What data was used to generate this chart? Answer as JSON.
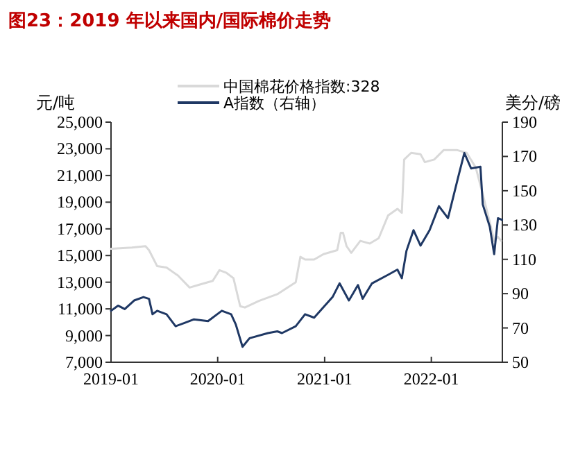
{
  "chart_data": {
    "type": "line",
    "title": "图23：2019 年以来国内/国际棉价走势",
    "ylabel": "元/吨",
    "y2label": "美分/磅",
    "legend": "top",
    "xlim": [
      "2019-01-01",
      "2022-09-01"
    ],
    "xticks": [
      {
        "value": "2019-01-01",
        "label": "2019-01"
      },
      {
        "value": "2020-01-01",
        "label": "2020-01"
      },
      {
        "value": "2021-01-01",
        "label": "2021-01"
      },
      {
        "value": "2022-01-01",
        "label": "2022-01"
      }
    ],
    "ylim": [
      7000,
      25000
    ],
    "yticks": [
      {
        "value": 7000,
        "label": "7,000"
      },
      {
        "value": 9000,
        "label": "9,000"
      },
      {
        "value": 11000,
        "label": "11,000"
      },
      {
        "value": 13000,
        "label": "13,000"
      },
      {
        "value": 15000,
        "label": "15,000"
      },
      {
        "value": 17000,
        "label": "17,000"
      },
      {
        "value": 19000,
        "label": "19,000"
      },
      {
        "value": 21000,
        "label": "21,000"
      },
      {
        "value": 23000,
        "label": "23,000"
      },
      {
        "value": 25000,
        "label": "25,000"
      }
    ],
    "y2lim": [
      50,
      190
    ],
    "y2ticks": [
      50,
      70,
      90,
      110,
      130,
      150,
      170,
      190
    ],
    "series": [
      {
        "name": "中国棉花价格指数:328",
        "color": "#d9d9d9",
        "x": [
          "2019-01-01",
          "2019-03-13",
          "2019-04-29",
          "2019-05-11",
          "2019-06-08",
          "2019-07-10",
          "2019-08-18",
          "2019-09-27",
          "2019-10-28",
          "2019-12-15",
          "2020-01-07",
          "2020-01-31",
          "2020-02-24",
          "2020-03-18",
          "2020-04-03",
          "2020-05-21",
          "2020-07-23",
          "2020-09-24",
          "2020-10-10",
          "2020-10-26",
          "2020-11-26",
          "2020-12-28",
          "2021-02-13",
          "2021-02-25",
          "2021-03-05",
          "2021-03-17",
          "2021-04-02",
          "2021-05-03",
          "2021-06-04",
          "2021-07-05",
          "2021-08-06",
          "2021-09-07",
          "2021-09-22",
          "2021-09-30",
          "2021-10-24",
          "2021-11-25",
          "2021-12-10",
          "2022-01-11",
          "2022-02-12",
          "2022-03-31",
          "2022-05-02",
          "2022-06-02",
          "2022-06-26",
          "2022-07-20",
          "2022-08-04",
          "2022-08-17",
          "2022-08-28"
        ],
        "values": [
          15500,
          15600,
          15700,
          15400,
          14200,
          14100,
          13500,
          12600,
          12800,
          13100,
          13900,
          13700,
          13300,
          11200,
          11100,
          11600,
          12100,
          13000,
          14900,
          14700,
          14700,
          15100,
          15400,
          16700,
          16700,
          15700,
          15200,
          16100,
          15900,
          16300,
          18000,
          18500,
          18200,
          22200,
          22700,
          22600,
          22000,
          22200,
          22900,
          22900,
          22700,
          21600,
          19600,
          17500,
          16100,
          16400,
          16100
        ]
      },
      {
        "name": "A指数（右轴）",
        "color": "#1f3864",
        "axis": "y2",
        "x": [
          "2019-01-01",
          "2019-01-25",
          "2019-02-17",
          "2019-03-21",
          "2019-04-22",
          "2019-05-11",
          "2019-05-23",
          "2019-06-08",
          "2019-07-10",
          "2019-08-10",
          "2019-09-11",
          "2019-10-12",
          "2019-11-29",
          "2020-01-15",
          "2020-02-16",
          "2020-03-03",
          "2020-03-26",
          "2020-04-19",
          "2020-06-21",
          "2020-07-23",
          "2020-08-08",
          "2020-09-24",
          "2020-10-26",
          "2020-11-26",
          "2021-01-28",
          "2021-02-21",
          "2021-03-25",
          "2021-04-25",
          "2021-05-11",
          "2021-06-12",
          "2021-08-06",
          "2021-09-07",
          "2021-09-22",
          "2021-10-08",
          "2021-11-01",
          "2021-11-25",
          "2021-12-26",
          "2022-01-27",
          "2022-02-27",
          "2022-03-31",
          "2022-04-24",
          "2022-05-17",
          "2022-06-18",
          "2022-06-26",
          "2022-07-20",
          "2022-08-04",
          "2022-08-17",
          "2022-08-31"
        ],
        "values": [
          80,
          83,
          81,
          86,
          88,
          87,
          78,
          80,
          78,
          71,
          73,
          75,
          74,
          80,
          78,
          72,
          59,
          64,
          67,
          68,
          67,
          71,
          78,
          76,
          88,
          96,
          86,
          95,
          87,
          96,
          101,
          104,
          99,
          115,
          127,
          118,
          127,
          141,
          134,
          156,
          172,
          163,
          164,
          142,
          129,
          113,
          134,
          133
        ]
      }
    ]
  }
}
